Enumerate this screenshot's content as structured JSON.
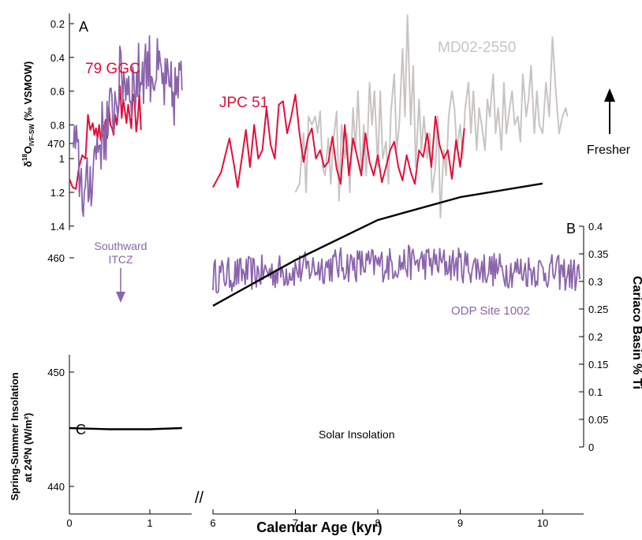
{
  "xaxis": {
    "label": "Calendar Age (kyr)",
    "ticks_left": [
      "0",
      "1"
    ],
    "ticks_right": [
      "6",
      "7",
      "8",
      "9",
      "10"
    ],
    "break_mark": "//"
  },
  "colors": {
    "red": "#e0103a",
    "gray": "#c8c4c2",
    "purple": "#8a64ab",
    "black": "#000000"
  },
  "chart_data": [
    {
      "panel": "A",
      "type": "line",
      "ylabel": "δ18OIVF-SW (‰ VSMOW)",
      "ylabel_parts": {
        "delta": "δ",
        "sup": "18",
        "o": "O",
        "sub": "IVF-SW",
        "rest": " (‰ VSMOW)"
      },
      "yticks": [
        "0.2",
        "0.4",
        "0.6",
        "0.8",
        "1",
        "1.2",
        "1.4"
      ],
      "ylim": [
        1.4,
        0.15
      ],
      "y_inverted": true,
      "annotation": "Fresher",
      "series": [
        {
          "name": "79 GGC",
          "color": "#e0103a",
          "x": [
            0.0,
            0.04,
            0.08,
            0.12,
            0.16,
            0.2,
            0.23,
            0.26,
            0.29,
            0.31,
            0.33,
            0.35,
            0.37,
            0.39,
            0.41,
            0.43,
            0.45,
            0.47,
            0.49,
            0.51,
            0.53,
            0.55,
            0.57,
            0.59,
            0.61,
            0.63,
            0.65,
            0.67,
            0.69,
            0.71,
            0.73,
            0.75,
            0.77,
            0.79,
            0.81,
            0.83,
            0.85,
            0.87,
            0.89
          ],
          "y": [
            1.12,
            1.17,
            1.18,
            1.05,
            0.98,
            1.0,
            0.74,
            0.83,
            0.79,
            0.86,
            0.82,
            0.88,
            0.8,
            0.89,
            0.86,
            0.82,
            0.77,
            0.88,
            0.7,
            0.8,
            0.82,
            0.86,
            0.74,
            0.8,
            0.7,
            0.57,
            0.76,
            0.65,
            0.72,
            0.79,
            0.68,
            0.75,
            0.82,
            0.62,
            0.66,
            0.84,
            0.76,
            0.62,
            0.83
          ]
        },
        {
          "name": "JPC 51",
          "color": "#e0103a",
          "x": [
            6.0,
            6.1,
            6.2,
            6.25,
            6.3,
            6.4,
            6.45,
            6.5,
            6.55,
            6.6,
            6.65,
            6.7,
            6.75,
            6.8,
            6.85,
            6.9,
            6.95,
            7.0,
            7.05,
            7.1,
            7.15,
            7.2,
            7.25,
            7.3,
            7.35,
            7.4,
            7.45,
            7.5,
            7.55,
            7.6,
            7.65,
            7.7,
            7.75,
            7.8,
            7.85,
            7.9,
            7.95,
            8.0,
            8.05,
            8.1,
            8.15,
            8.2,
            8.25,
            8.3,
            8.35,
            8.4,
            8.45,
            8.5,
            8.55,
            8.6,
            8.65,
            8.7,
            8.75,
            8.8,
            8.85,
            8.9,
            8.95,
            9.0,
            9.05
          ],
          "y": [
            1.17,
            1.08,
            0.88,
            1.02,
            1.17,
            0.83,
            1.05,
            0.8,
            1.0,
            0.95,
            0.7,
            0.92,
            1.0,
            0.68,
            0.66,
            0.85,
            0.75,
            0.62,
            0.85,
            1.02,
            0.88,
            0.82,
            1.0,
            0.95,
            1.05,
            1.02,
            0.87,
            1.06,
            1.15,
            0.8,
            1.1,
            0.88,
            0.99,
            1.1,
            0.85,
            1.02,
            1.1,
            0.98,
            1.14,
            1.05,
            0.95,
            0.9,
            1.05,
            1.13,
            0.98,
            1.08,
            1.15,
            0.95,
            0.99,
            0.85,
            1.05,
            0.75,
            0.92,
            1.0,
            0.95,
            1.12,
            0.89,
            1.05,
            0.82
          ]
        },
        {
          "name": "MD02-2550",
          "color": "#c8c4c2",
          "x": [
            7.0,
            7.05,
            7.1,
            7.13,
            7.16,
            7.2,
            7.24,
            7.27,
            7.3,
            7.33,
            7.36,
            7.4,
            7.43,
            7.46,
            7.5,
            7.53,
            7.56,
            7.6,
            7.63,
            7.66,
            7.7,
            7.73,
            7.76,
            7.8,
            7.83,
            7.86,
            7.9,
            7.93,
            7.96,
            8.0,
            8.03,
            8.06,
            8.1,
            8.13,
            8.16,
            8.2,
            8.23,
            8.26,
            8.3,
            8.33,
            8.36,
            8.4,
            8.43,
            8.46,
            8.5,
            8.53,
            8.56,
            8.6,
            8.63,
            8.66,
            8.7,
            8.73,
            8.76,
            8.8,
            8.83,
            8.86,
            8.9,
            8.93,
            8.96,
            9.0,
            9.03,
            9.06,
            9.1,
            9.13,
            9.16,
            9.2,
            9.23,
            9.26,
            9.3,
            9.33,
            9.36,
            9.4,
            9.43,
            9.46,
            9.5,
            9.53,
            9.56,
            9.6,
            9.63,
            9.66,
            9.7,
            9.73,
            9.76,
            9.8,
            9.83,
            9.86,
            9.9,
            9.93,
            9.96,
            10.0,
            10.04,
            10.08,
            10.12,
            10.16,
            10.2,
            10.24,
            10.28,
            10.3
          ],
          "y": [
            1.2,
            1.15,
            0.85,
            1.2,
            0.75,
            0.8,
            0.75,
            0.85,
            0.72,
            1.05,
            1.1,
            0.88,
            1.15,
            0.9,
            0.72,
            1.25,
            0.8,
            1.0,
            0.85,
            1.2,
            0.7,
            0.95,
            0.6,
            1.1,
            0.8,
            1.1,
            0.55,
            0.8,
            0.6,
            1.05,
            0.6,
            1.0,
            0.9,
            1.15,
            0.72,
            0.5,
            0.95,
            0.8,
            0.35,
            0.75,
            0.15,
            0.8,
            0.45,
            1.05,
            0.65,
            0.95,
            0.75,
            1.0,
            0.85,
            1.2,
            1.05,
            0.75,
            1.35,
            0.95,
            1.1,
            0.75,
            0.6,
            0.7,
            0.95,
            0.8,
            1.0,
            0.7,
            0.55,
            0.85,
            0.6,
            0.95,
            0.7,
            0.8,
            0.95,
            0.65,
            0.75,
            0.5,
            0.85,
            0.7,
            0.95,
            0.55,
            0.85,
            0.7,
            0.6,
            0.8,
            0.75,
            0.9,
            0.5,
            0.75,
            0.65,
            0.45,
            0.85,
            0.6,
            0.8,
            0.85,
            0.55,
            0.75,
            0.28,
            0.6,
            0.85,
            0.75,
            0.7,
            0.75
          ]
        }
      ]
    },
    {
      "panel": "B",
      "type": "line",
      "ylabel": "Cariaco Basin % Ti",
      "yticks": [
        "0",
        "0.05",
        "0.1",
        "0.15",
        "0.2",
        "0.25",
        "0.3",
        "0.35",
        "0.4"
      ],
      "ylim": [
        0,
        0.4
      ],
      "series": [
        {
          "name": "ODP Site 1002",
          "color": "#8a64ab",
          "x_range": [
            6.0,
            10.45
          ],
          "y_center": [
            [
              6.0,
              0.31
            ],
            [
              6.5,
              0.315
            ],
            [
              7.0,
              0.32
            ],
            [
              7.5,
              0.33
            ],
            [
              8.0,
              0.33
            ],
            [
              8.5,
              0.335
            ],
            [
              9.0,
              0.33
            ],
            [
              9.5,
              0.32
            ],
            [
              10.0,
              0.32
            ],
            [
              10.45,
              0.31
            ]
          ],
          "y_amplitude": 0.032
        }
      ]
    },
    {
      "panel": "C",
      "type": "line",
      "ylabel": "Spring-Summer Insolation at 24⁰N (W/m²)",
      "ylabel_line1": "Spring-Summer Insolation",
      "ylabel_line2": "at 24⁰N (W/m²)",
      "yticks": [
        "440",
        "450",
        "460",
        "470"
      ],
      "ylim": [
        440,
        480
      ],
      "annotation": "Southward ITCZ",
      "annotation_line1": "Southward",
      "annotation_line2": "ITCZ",
      "annotation_x": 0.65,
      "series": [
        {
          "name": "Southward ITCZ record",
          "color": "#8a64ab",
          "x_range": [
            0.05,
            1.4
          ],
          "y_center": [
            [
              0.05,
              470
            ],
            [
              0.2,
              465
            ],
            [
              0.35,
              470
            ],
            [
              0.5,
              472
            ],
            [
              0.65,
              476
            ],
            [
              0.8,
              475
            ],
            [
              0.95,
              477
            ],
            [
              1.1,
              476
            ],
            [
              1.25,
              474
            ],
            [
              1.4,
              475
            ]
          ],
          "y_amplitude": 3.2
        },
        {
          "name": "Solar Insolation",
          "color": "#000000",
          "x": [
            6.0,
            7.0,
            8.0,
            9.0,
            10.0
          ],
          "y": [
            455.8,
            459.8,
            463.3,
            465.3,
            466.5
          ]
        },
        {
          "name": "Solar Insolation (0–1.4 kyr)",
          "color": "#000000",
          "x": [
            0.0,
            0.5,
            1.0,
            1.4
          ],
          "y": [
            445.1,
            445.0,
            445.0,
            445.1
          ]
        }
      ]
    }
  ]
}
